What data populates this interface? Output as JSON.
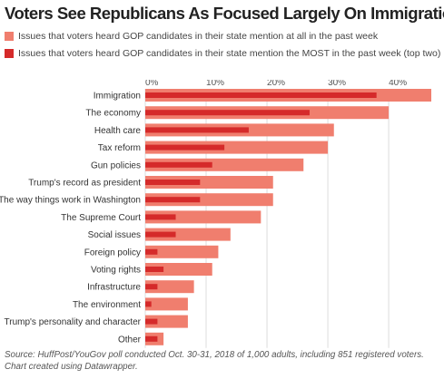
{
  "chart_data": {
    "type": "bar",
    "title": "Voters See Republicans As Focused Largely On Immigration",
    "xlim": [
      0,
      47
    ],
    "ticks": [
      "0%",
      "10%",
      "20%",
      "30%",
      "40%"
    ],
    "tick_values": [
      0,
      10,
      20,
      30,
      40
    ],
    "grid": true,
    "legend_position": "top",
    "categories": [
      "Immigration",
      "The economy",
      "Health care",
      "Tax reform",
      "Gun policies",
      "Trump's record as president",
      "The way things work in Washington",
      "The Supreme Court",
      "Social issues",
      "Foreign policy",
      "Voting rights",
      "Infrastructure",
      "The environment",
      "Trump's personality and character",
      "Other"
    ],
    "series": [
      {
        "name": "Issues that voters heard GOP candidates in their state mention at all in the past week",
        "color": "#f07e6e",
        "values": [
          47,
          40,
          31,
          30,
          26,
          21,
          21,
          19,
          14,
          12,
          11,
          8,
          7,
          7,
          3
        ]
      },
      {
        "name": "Issues that voters heard GOP candidates in their state mention the MOST in the past week (top two)",
        "color": "#d52a2a",
        "values": [
          38,
          27,
          17,
          13,
          11,
          9,
          9,
          5,
          5,
          2,
          3,
          2,
          1,
          2,
          2
        ]
      }
    ]
  },
  "source": "Source: HuffPost/YouGov poll conducted Oct. 30-31, 2018 of 1,000 adults, including 851 registered voters. Chart created using Datawrapper."
}
